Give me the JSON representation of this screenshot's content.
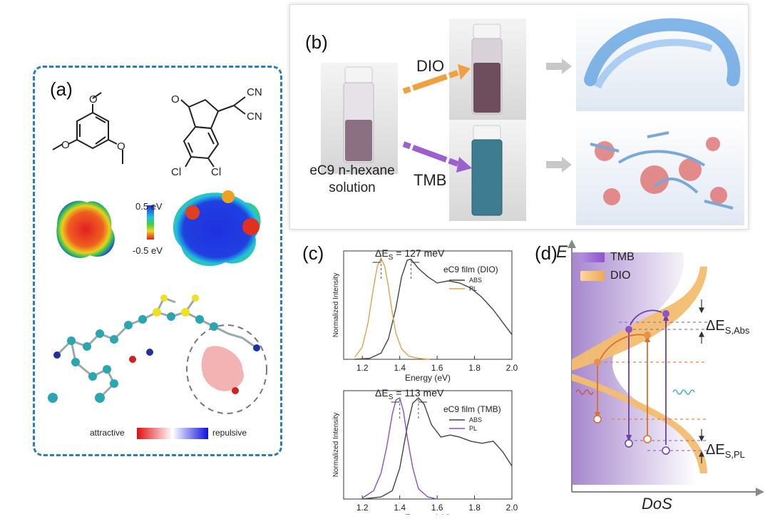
{
  "panel_a": {
    "label": "(a)",
    "mol1_substituent": "O",
    "mol2": {
      "cn1": "CN",
      "cn2": "CN",
      "oxygen": "O",
      "cl1": "Cl",
      "cl2": "Cl"
    },
    "scale_top": "0.5 eV",
    "scale_bottom": "-0.5 eV",
    "attractive_label": "attractive",
    "repulsive_label": "repulsive"
  },
  "panel_b": {
    "label": "(b)",
    "solution_line1": "eC9 n-hexane",
    "solution_line2": "solution",
    "dio_label": "DIO",
    "tmb_label": "TMB"
  },
  "panel_c": {
    "label": "(c)",
    "chart_data": [
      {
        "type": "line",
        "title": "",
        "annotation": "ΔE",
        "annotation_sub": "S",
        "annotation_value": " = 127 meV",
        "legend_title": "eC9 film (DIO)",
        "xlabel": "Energy (eV)",
        "ylabel": "Normalized Intensity",
        "xlim": [
          1.1,
          2.0
        ],
        "ylim": [
          0,
          1.05
        ],
        "xticks": [
          "1.2",
          "1.4",
          "1.6",
          "1.8",
          "2.0"
        ],
        "series": [
          {
            "name": "ABS",
            "color": "#444444",
            "x": [
              1.16,
              1.24,
              1.3,
              1.34,
              1.38,
              1.41,
              1.44,
              1.46,
              1.5,
              1.55,
              1.6,
              1.66,
              1.72,
              1.78,
              1.84,
              1.9,
              1.95,
              2.0
            ],
            "y": [
              0.0,
              0.01,
              0.06,
              0.2,
              0.5,
              0.8,
              0.96,
              0.97,
              0.88,
              0.8,
              0.74,
              0.76,
              0.74,
              0.69,
              0.6,
              0.48,
              0.36,
              0.24
            ]
          },
          {
            "name": "PL",
            "color": "#e0a24a",
            "x": [
              1.16,
              1.2,
              1.23,
              1.26,
              1.28,
              1.3,
              1.32,
              1.34,
              1.36,
              1.38,
              1.41,
              1.45,
              1.5,
              1.56
            ],
            "y": [
              0.02,
              0.12,
              0.35,
              0.7,
              0.9,
              0.98,
              0.9,
              0.7,
              0.45,
              0.25,
              0.1,
              0.03,
              0.01,
              0.0
            ]
          }
        ]
      },
      {
        "type": "line",
        "title": "",
        "annotation": "ΔE",
        "annotation_sub": "S",
        "annotation_value": " = 113 meV",
        "legend_title": "eC9 film (TMB)",
        "xlabel": "Energy (eV)",
        "ylabel": "Normalized Intensity",
        "xlim": [
          1.1,
          2.0
        ],
        "ylim": [
          0,
          1.05
        ],
        "xticks": [
          "1.2",
          "1.4",
          "1.6",
          "1.8",
          "2.0"
        ],
        "series": [
          {
            "name": "ABS",
            "color": "#444444",
            "x": [
              1.2,
              1.3,
              1.36,
              1.4,
              1.44,
              1.47,
              1.5,
              1.53,
              1.57,
              1.62,
              1.67,
              1.72,
              1.78,
              1.84,
              1.9,
              1.95,
              2.0
            ],
            "y": [
              0.0,
              0.02,
              0.08,
              0.3,
              0.7,
              0.93,
              0.98,
              0.92,
              0.72,
              0.6,
              0.62,
              0.6,
              0.56,
              0.54,
              0.56,
              0.46,
              0.32
            ]
          },
          {
            "name": "PL",
            "color": "#8a4fc4",
            "x": [
              1.2,
              1.26,
              1.3,
              1.33,
              1.36,
              1.38,
              1.4,
              1.42,
              1.44,
              1.47,
              1.5,
              1.55,
              1.6
            ],
            "y": [
              0.01,
              0.08,
              0.25,
              0.5,
              0.82,
              0.96,
              0.98,
              0.85,
              0.6,
              0.3,
              0.1,
              0.02,
              0.0
            ]
          }
        ]
      }
    ]
  },
  "panel_d": {
    "label": "(d)",
    "y_axis": "E",
    "x_axis": "DoS",
    "legend_tmb": "TMB",
    "legend_dio": "DIO",
    "de_abs_main": "ΔE",
    "de_abs_sub": "S,Abs",
    "de_pl_main": "ΔE",
    "de_pl_sub": "S,PL",
    "colors": {
      "tmb": "#b89ad6",
      "dio": "#f3c27a",
      "tmb_dot": "#8e54c7",
      "dio_dot": "#e8904a"
    }
  }
}
